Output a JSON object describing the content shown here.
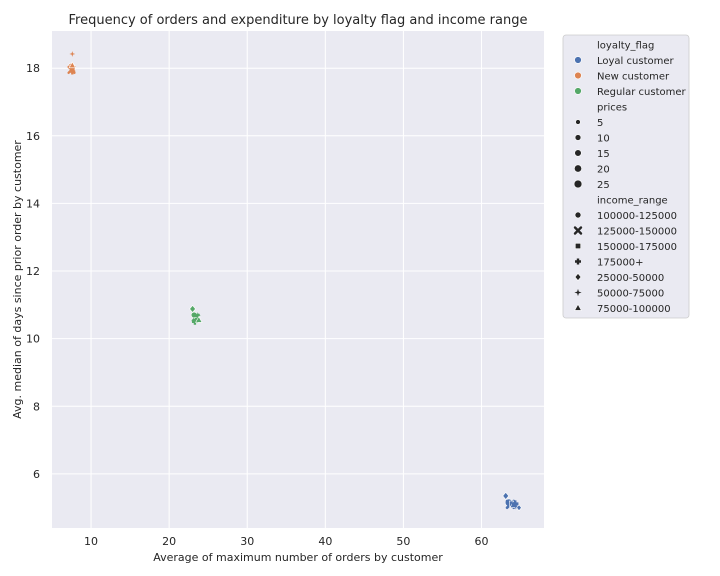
{
  "chart_data": {
    "type": "scatter",
    "title": "Frequency of orders and expenditure by loyalty flag and income range",
    "xlabel": "Average of maximum number of orders by customer",
    "ylabel": "Avg. median of days since prior order by customer",
    "xlim": [
      5,
      68
    ],
    "ylim": [
      4.4,
      19.1
    ],
    "xticks": [
      10,
      20,
      30,
      40,
      50,
      60
    ],
    "yticks": [
      6,
      8,
      10,
      12,
      14,
      16,
      18
    ],
    "grid": true,
    "legend_position": "outside right",
    "series": [
      {
        "name": "Loyal customer",
        "color": "#4c72b0",
        "points": [
          {
            "x": 63.1,
            "y": 5.35,
            "income": "25000-50000",
            "price": 10
          },
          {
            "x": 63.5,
            "y": 5.15,
            "income": "100000-125000",
            "price": 20
          },
          {
            "x": 63.7,
            "y": 5.1,
            "income": "125000-150000",
            "price": 15
          },
          {
            "x": 63.9,
            "y": 5.12,
            "income": "150000-175000",
            "price": 10
          },
          {
            "x": 64.1,
            "y": 5.08,
            "income": "75000-100000",
            "price": 15
          },
          {
            "x": 64.3,
            "y": 5.12,
            "income": "175000+",
            "price": 15
          },
          {
            "x": 64.4,
            "y": 5.05,
            "income": "50000-75000",
            "price": 10
          },
          {
            "x": 64.8,
            "y": 5.0,
            "income": "25000-50000",
            "price": 5
          }
        ]
      },
      {
        "name": "New customer",
        "color": "#dd8452",
        "points": [
          {
            "x": 7.6,
            "y": 18.42,
            "income": "50000-75000",
            "price": 5
          },
          {
            "x": 7.5,
            "y": 18.05,
            "income": "100000-125000",
            "price": 15
          },
          {
            "x": 7.6,
            "y": 18.0,
            "income": "150000-175000",
            "price": 10
          },
          {
            "x": 7.5,
            "y": 17.95,
            "income": "125000-150000",
            "price": 10
          },
          {
            "x": 7.6,
            "y": 17.9,
            "income": "175000+",
            "price": 10
          },
          {
            "x": 7.6,
            "y": 18.08,
            "income": "75000-100000",
            "price": 10
          }
        ]
      },
      {
        "name": "Regular customer",
        "color": "#55a868",
        "points": [
          {
            "x": 23.0,
            "y": 10.88,
            "income": "25000-50000",
            "price": 10
          },
          {
            "x": 23.2,
            "y": 10.7,
            "income": "100000-125000",
            "price": 10
          },
          {
            "x": 23.4,
            "y": 10.62,
            "income": "125000-150000",
            "price": 10
          },
          {
            "x": 23.6,
            "y": 10.55,
            "income": "150000-175000",
            "price": 10
          },
          {
            "x": 23.3,
            "y": 10.5,
            "income": "175000+",
            "price": 10
          },
          {
            "x": 23.8,
            "y": 10.55,
            "income": "75000-100000",
            "price": 10
          },
          {
            "x": 23.6,
            "y": 10.68,
            "income": "50000-75000",
            "price": 10
          }
        ]
      }
    ],
    "legend": {
      "hue_title": "loyalty_flag",
      "hue_entries": [
        "Loyal customer",
        "New customer",
        "Regular customer"
      ],
      "size_title": "prices",
      "size_entries": [
        "5",
        "10",
        "15",
        "20",
        "25"
      ],
      "style_title": "income_range",
      "style_entries": [
        {
          "label": "100000-125000",
          "marker": "circle"
        },
        {
          "label": "125000-150000",
          "marker": "x"
        },
        {
          "label": "150000-175000",
          "marker": "square"
        },
        {
          "label": "175000+",
          "marker": "plus"
        },
        {
          "label": "25000-50000",
          "marker": "diamond"
        },
        {
          "label": "50000-75000",
          "marker": "star"
        },
        {
          "label": "75000-100000",
          "marker": "triangle"
        }
      ]
    },
    "colors": {
      "plot_bg": "#eaeaf2",
      "grid": "#ffffff",
      "legend_marker": "#262626"
    }
  }
}
